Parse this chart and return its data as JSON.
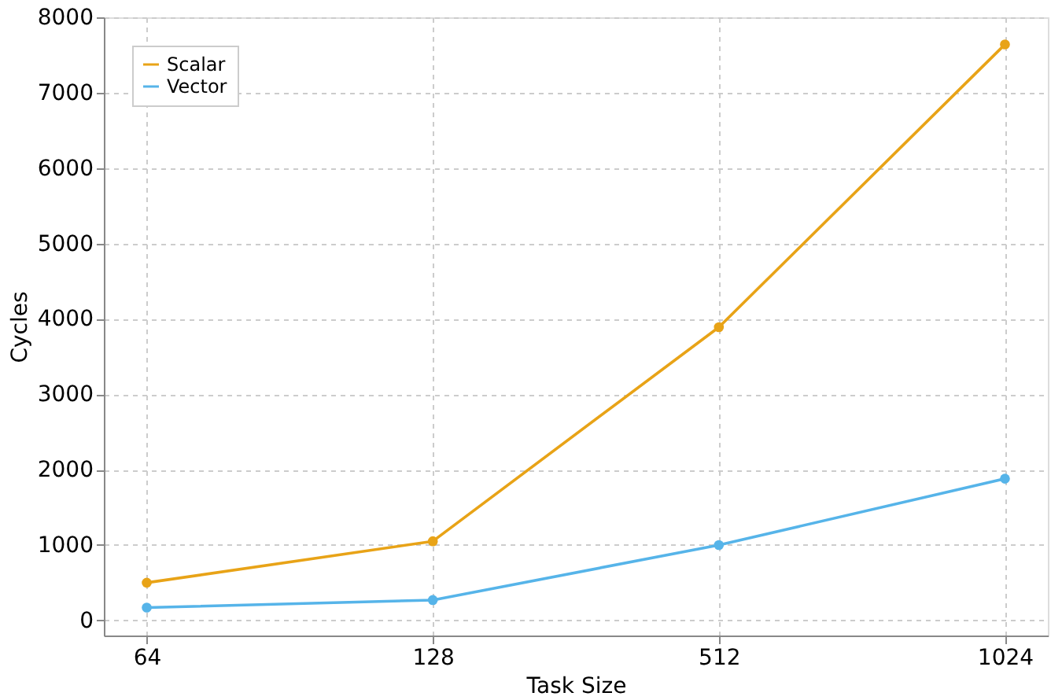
{
  "chart_data": {
    "type": "line",
    "xlabel": "Task Size",
    "ylabel": "Cycles",
    "categories": [
      "64",
      "128",
      "512",
      "1024"
    ],
    "series": [
      {
        "name": "Scalar",
        "color": "#e8a317",
        "values": [
          500,
          1050,
          3890,
          7640
        ]
      },
      {
        "name": "Vector",
        "color": "#56b4e9",
        "values": [
          170,
          270,
          1000,
          1880
        ]
      }
    ],
    "ylim": [
      -200,
      8000
    ],
    "yticks": [
      0,
      1000,
      2000,
      3000,
      4000,
      5000,
      6000,
      7000,
      8000
    ],
    "grid": true,
    "legend": "top left",
    "marker": "circle",
    "line_style": "solid"
  }
}
